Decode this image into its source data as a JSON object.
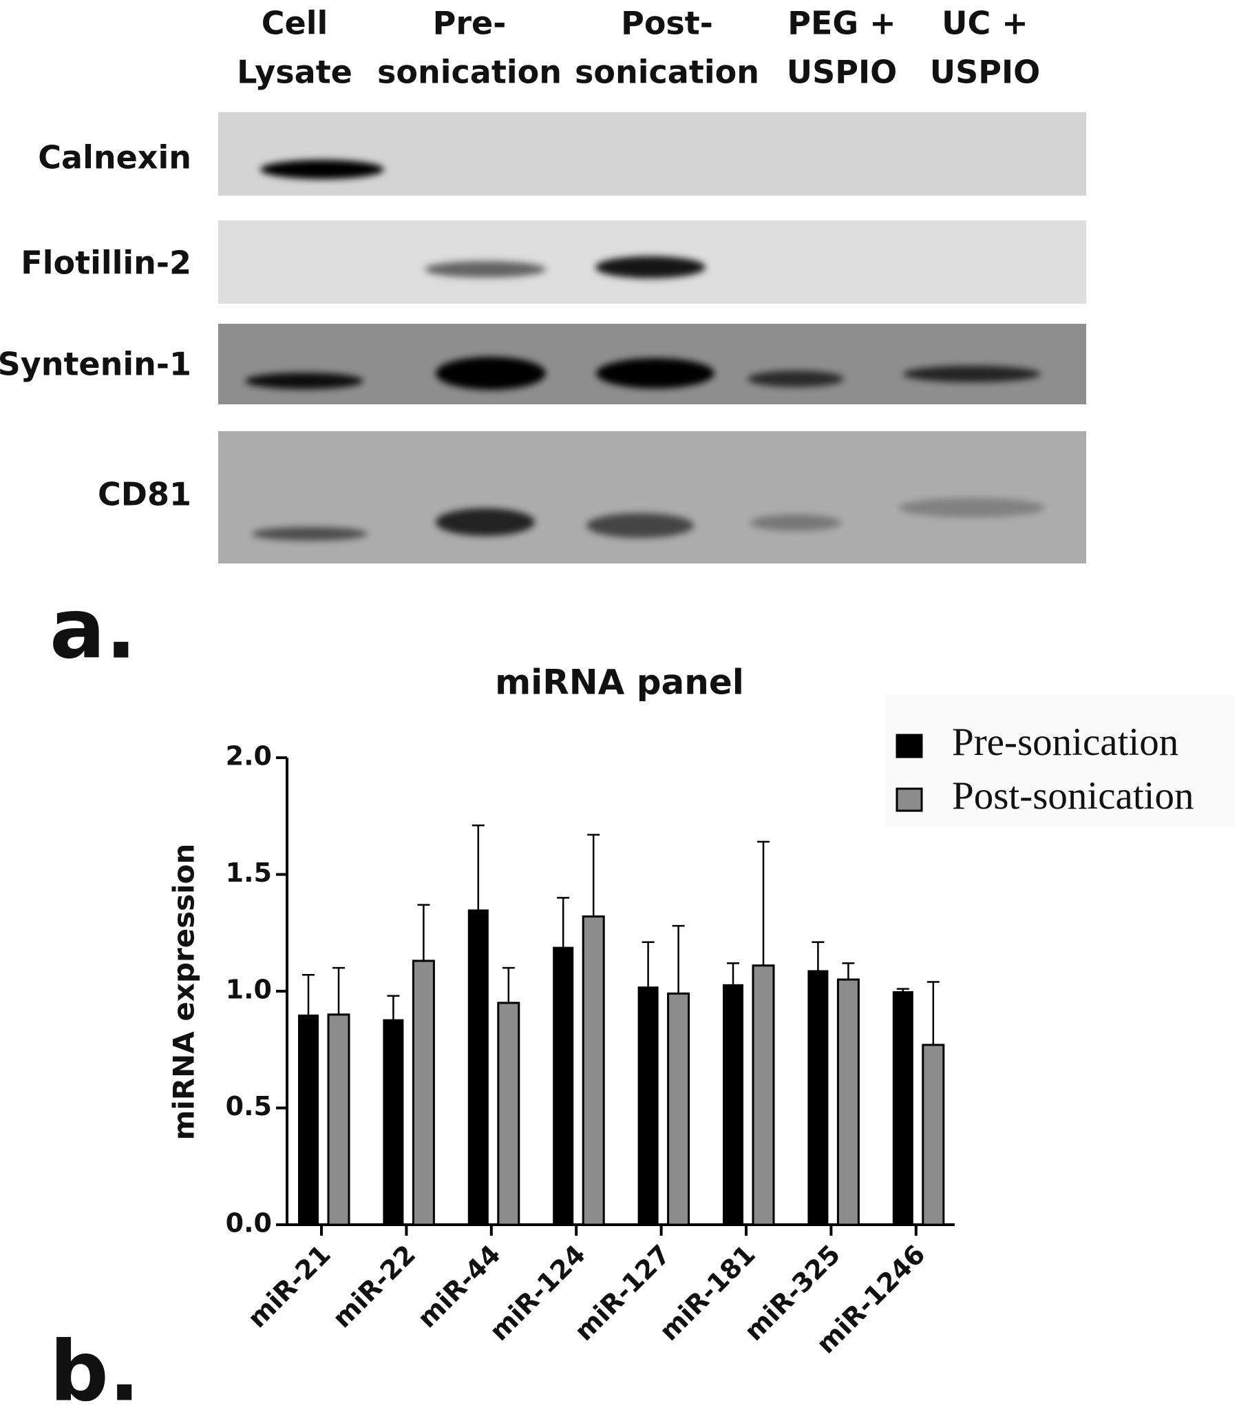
{
  "blot": {
    "lanes": [
      [
        "Cell",
        "Lysate"
      ],
      [
        "Pre-",
        "sonication"
      ],
      [
        "Post-",
        "sonication"
      ],
      [
        "PEG +",
        "USPIO"
      ],
      [
        "UC +",
        "USPIO"
      ]
    ],
    "rows": [
      "Calnexin",
      "Flotillin-2",
      "Syntenin-1",
      "CD81"
    ]
  },
  "panel_labels": [
    "a.",
    "b."
  ],
  "chart_data": {
    "type": "bar",
    "title": "miRNA panel",
    "y_label": "miRNA expression",
    "categories": [
      "miR-21",
      "miR-22",
      "miR-44",
      "miR-124",
      "miR-127",
      "miR-181",
      "miR-325",
      "miR-1246"
    ],
    "series": [
      {
        "name": "Pre-sonication",
        "color": "#000000",
        "values": [
          0.9,
          0.88,
          1.35,
          1.19,
          1.02,
          1.03,
          1.09,
          1.0
        ],
        "errors": [
          0.17,
          0.1,
          0.36,
          0.21,
          0.19,
          0.09,
          0.12,
          0.01
        ]
      },
      {
        "name": "Post-sonication",
        "color": "#8c8c8c",
        "values": [
          0.9,
          1.13,
          0.95,
          1.32,
          0.99,
          1.11,
          1.05,
          0.77
        ],
        "errors": [
          0.2,
          0.24,
          0.15,
          0.35,
          0.29,
          0.53,
          0.07,
          0.27
        ]
      }
    ],
    "ylim": [
      0,
      2
    ],
    "yticks": [
      {
        "value": 0,
        "label": "0.0"
      },
      0.5,
      {
        "value": 1,
        "label": "1.0"
      },
      1.5,
      {
        "value": 2,
        "label": "2.0"
      }
    ],
    "legend": "upper right"
  }
}
